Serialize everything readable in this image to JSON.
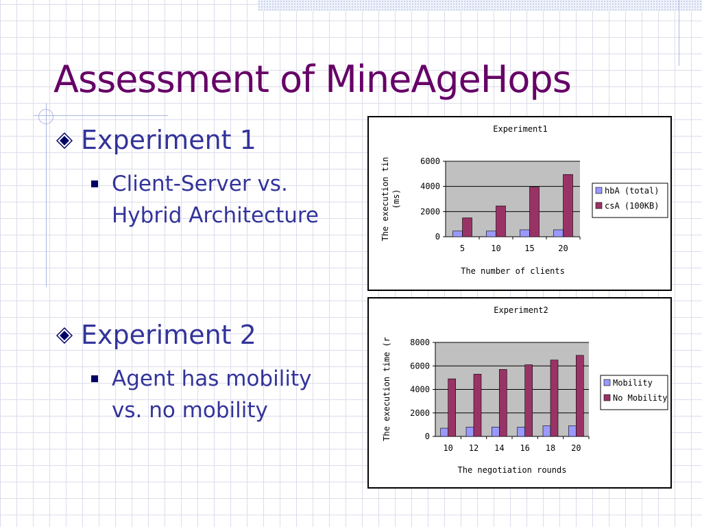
{
  "slide": {
    "title": "Assessment of MineAgeHops",
    "experiment1": {
      "heading": "Experiment 1",
      "bullet_line1": "Client-Server vs.",
      "bullet_line2": "Hybrid Architecture"
    },
    "experiment2": {
      "heading": "Experiment 2",
      "bullet_line1": "Agent has mobility",
      "bullet_line2": "vs. no mobility"
    }
  },
  "colors": {
    "title": "#660066",
    "text": "#33339a",
    "series_a": "#9999ff",
    "series_b": "#993366",
    "plot_bg": "#c0c0c0"
  },
  "chart_data": [
    {
      "type": "bar",
      "title": "Experiment1",
      "xlabel": "The number of clients",
      "ylabel": "The execution tin (ms)",
      "categories": [
        "5",
        "10",
        "15",
        "20"
      ],
      "ylim": [
        0,
        6000
      ],
      "yticks": [
        "0",
        "2000",
        "4000",
        "6000"
      ],
      "grid": true,
      "legend": "right",
      "series": [
        {
          "name": "hbA (total)",
          "values": [
            450,
            450,
            550,
            550
          ]
        },
        {
          "name": "csA (100KB)",
          "values": [
            1500,
            2450,
            3950,
            4950
          ]
        }
      ]
    },
    {
      "type": "bar",
      "title": "Experiment2",
      "xlabel": "The negotiation rounds",
      "ylabel": "The execution time (r",
      "categories": [
        "10",
        "12",
        "14",
        "16",
        "18",
        "20"
      ],
      "ylim": [
        0,
        8000
      ],
      "yticks": [
        "0",
        "2000",
        "4000",
        "6000",
        "8000"
      ],
      "grid": true,
      "legend": "right",
      "series": [
        {
          "name": "Mobility",
          "values": [
            700,
            800,
            800,
            800,
            900,
            900
          ]
        },
        {
          "name": "No Mobility",
          "values": [
            4900,
            5300,
            5700,
            6100,
            6500,
            6900
          ]
        }
      ]
    }
  ]
}
